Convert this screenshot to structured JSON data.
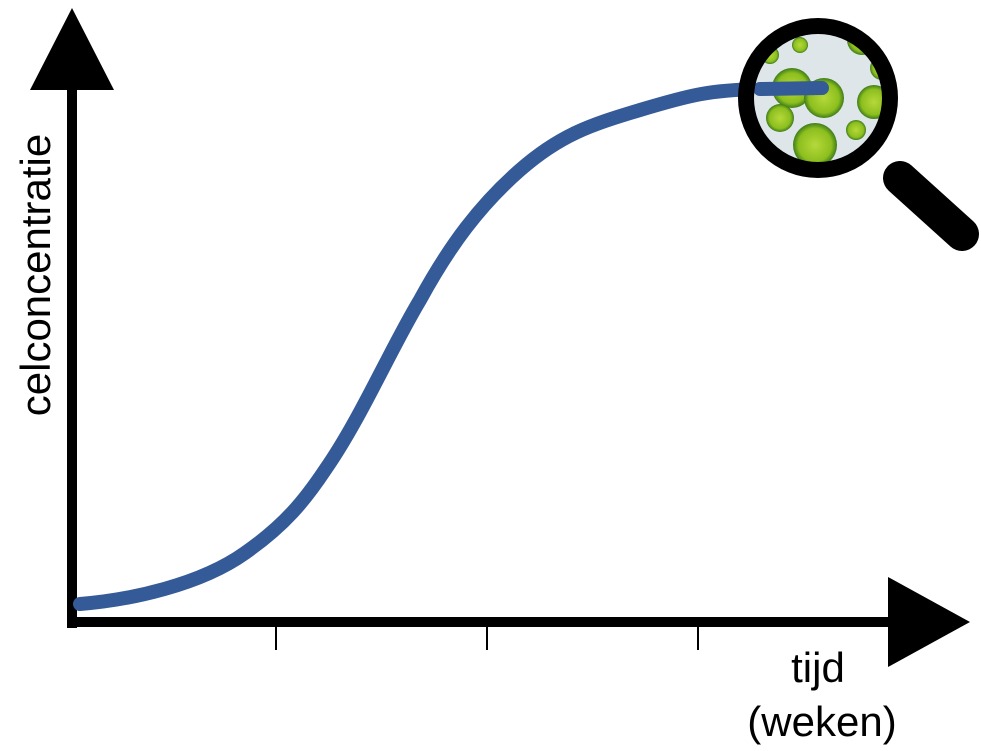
{
  "y_axis": {
    "label": "celconcentratie"
  },
  "x_axis": {
    "label_lines": [
      "tijd",
      "(weken)"
    ]
  }
}
